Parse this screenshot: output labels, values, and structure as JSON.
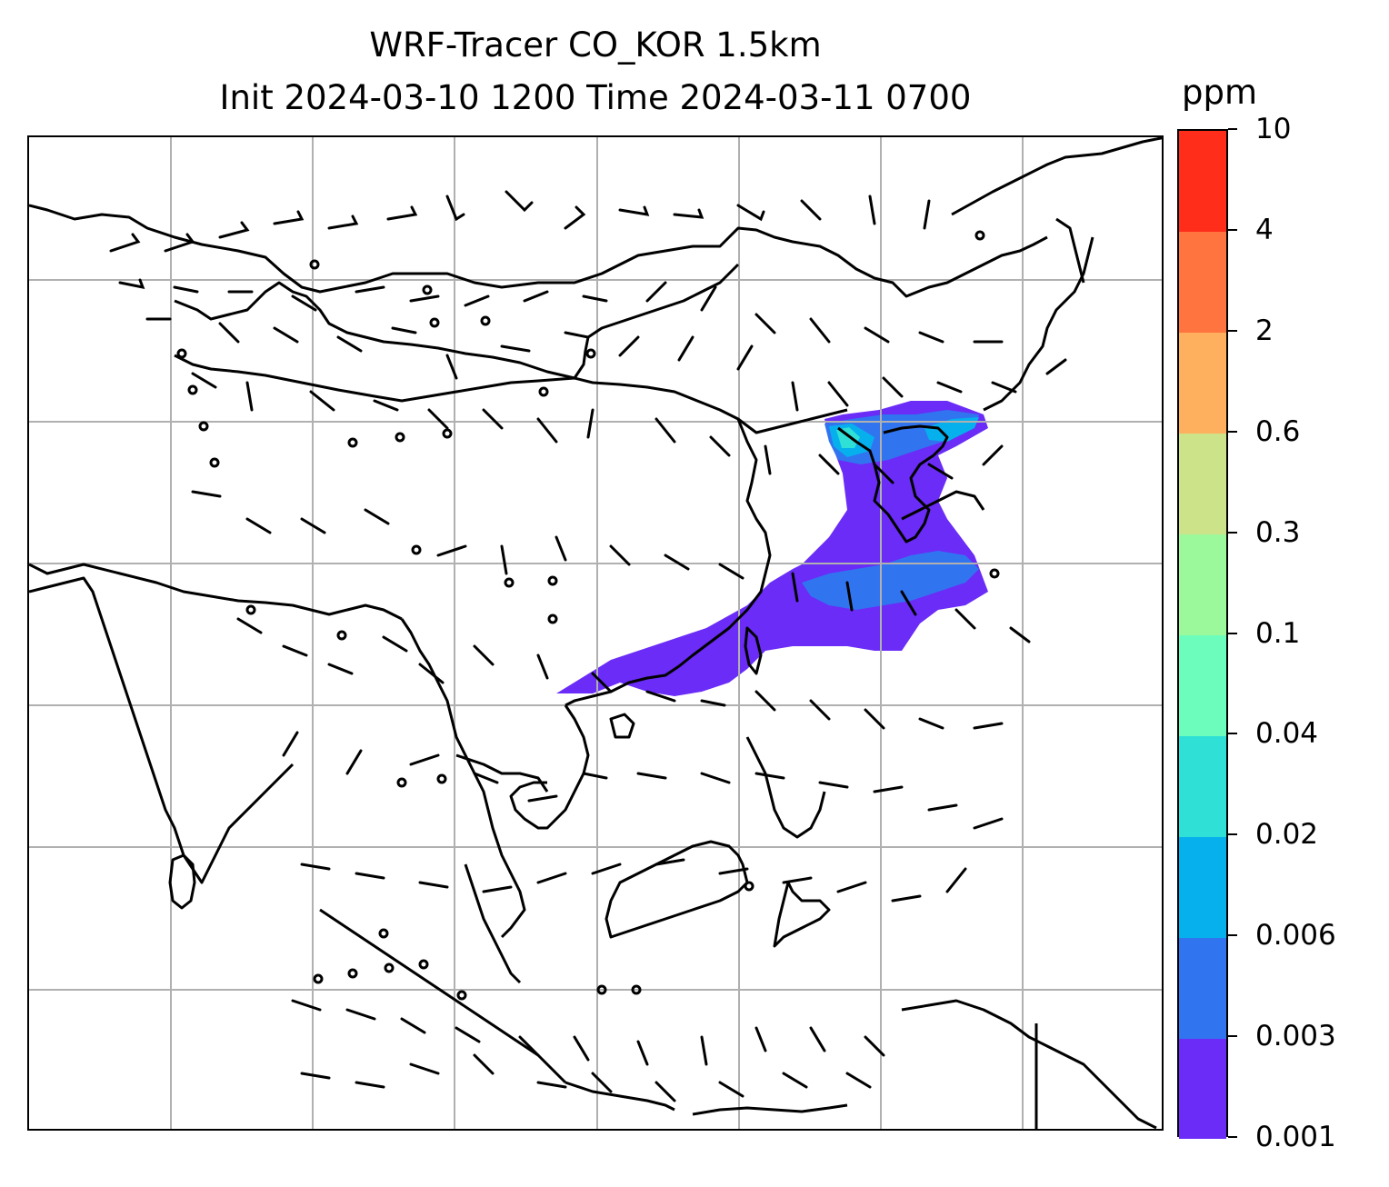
{
  "title": {
    "line1": "WRF-Tracer CO_KOR 1.5km",
    "line2": "Init 2024-03-10 1200 Time 2024-03-11 0700"
  },
  "colorbar": {
    "unit_label": "ppm",
    "tick_labels": [
      "0.001",
      "0.003",
      "0.006",
      "0.02",
      "0.04",
      "0.1",
      "0.3",
      "0.6",
      "2",
      "4",
      "10"
    ],
    "colors": [
      "#6a2cf6",
      "#3174f0",
      "#06b0ec",
      "#2ee0d6",
      "#6cfdbd",
      "#9bf89b",
      "#cde389",
      "#ffb05e",
      "#ff743f",
      "#ff2d19"
    ]
  },
  "map": {
    "gridlines": true,
    "coastlines": true,
    "wind_barbs": true,
    "field": "CO_KOR tracer at 1.5km"
  },
  "chart_data": {
    "type": "heatmap",
    "title": "WRF-Tracer CO_KOR 1.5km\nInit 2024-03-10 1200 Time 2024-03-11 0700",
    "colorbar_label": "ppm",
    "levels": [
      0.001,
      0.003,
      0.006,
      0.02,
      0.04,
      0.1,
      0.3,
      0.6,
      2,
      4,
      10
    ],
    "grid": true
  }
}
